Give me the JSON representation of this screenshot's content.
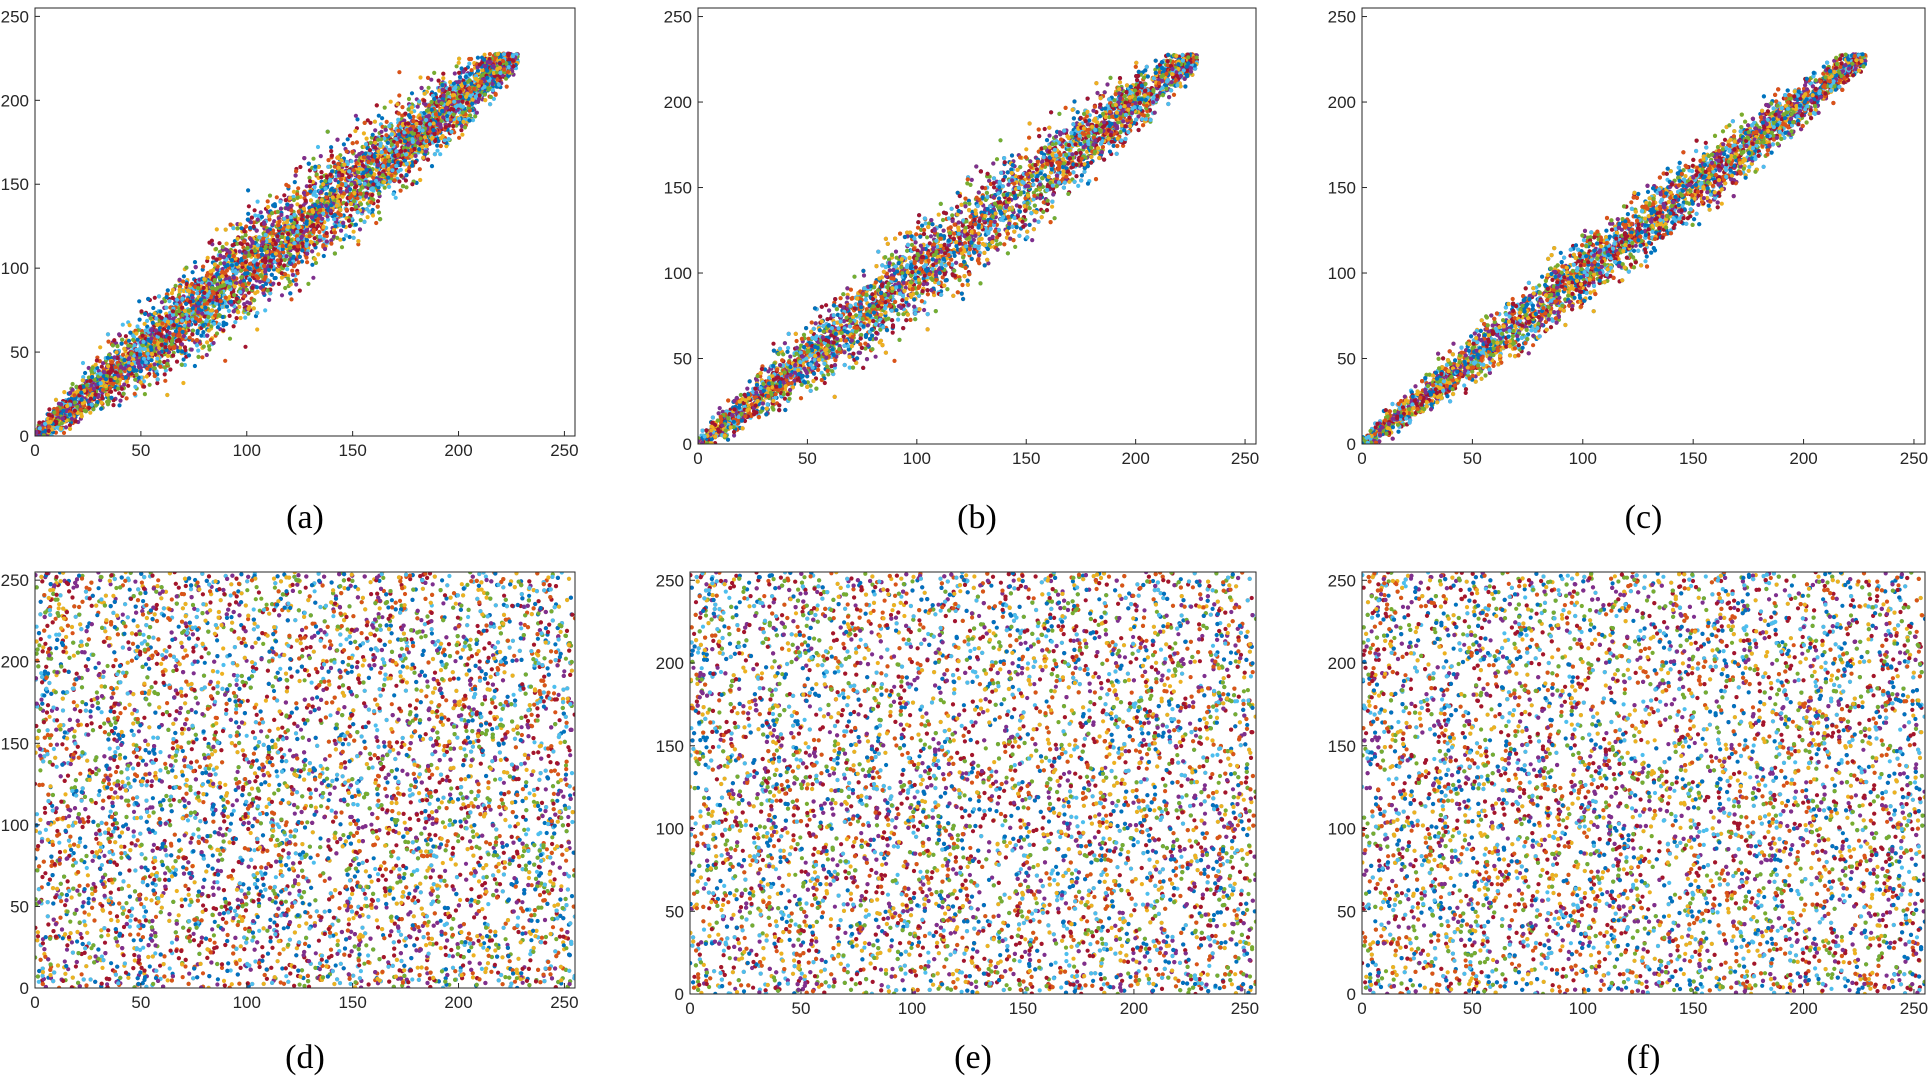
{
  "colors": {
    "series": [
      "#0072BD",
      "#D95319",
      "#EDB120",
      "#7E2F8E",
      "#77AC30",
      "#4DBEEE",
      "#A2142F"
    ],
    "axis": "#262626",
    "background": "#ffffff"
  },
  "chart_data": [
    {
      "panel": "(a)",
      "type": "scatter",
      "distribution": "correlated",
      "xlim": [
        0,
        255
      ],
      "ylim": [
        0,
        255
      ],
      "xticks": [
        0,
        50,
        100,
        150,
        200,
        250
      ],
      "yticks": [
        0,
        50,
        100,
        150,
        200,
        250
      ],
      "grid": false,
      "series_colors": [
        "#0072BD",
        "#D95319",
        "#EDB120",
        "#7E2F8E",
        "#77AC30",
        "#4DBEEE",
        "#A2142F"
      ],
      "x_range": [
        0,
        228
      ],
      "y_range": [
        0,
        228
      ],
      "spread": 0.2
    },
    {
      "panel": "(b)",
      "type": "scatter",
      "distribution": "correlated",
      "xlim": [
        0,
        255
      ],
      "ylim": [
        0,
        255
      ],
      "xticks": [
        0,
        50,
        100,
        150,
        200,
        250
      ],
      "yticks": [
        0,
        50,
        100,
        150,
        200,
        250
      ],
      "grid": false,
      "series_colors": [
        "#0072BD",
        "#D95319",
        "#EDB120",
        "#7E2F8E",
        "#77AC30",
        "#4DBEEE",
        "#A2142F"
      ],
      "x_range": [
        0,
        228
      ],
      "y_range": [
        0,
        228
      ],
      "spread": 0.18
    },
    {
      "panel": "(c)",
      "type": "scatter",
      "distribution": "correlated",
      "xlim": [
        0,
        255
      ],
      "ylim": [
        0,
        255
      ],
      "xticks": [
        0,
        50,
        100,
        150,
        200,
        250
      ],
      "yticks": [
        0,
        50,
        100,
        150,
        200,
        250
      ],
      "grid": false,
      "series_colors": [
        "#0072BD",
        "#D95319",
        "#EDB120",
        "#7E2F8E",
        "#77AC30",
        "#4DBEEE",
        "#A2142F"
      ],
      "x_range": [
        0,
        228
      ],
      "y_range": [
        0,
        228
      ],
      "spread": 0.12
    },
    {
      "panel": "(d)",
      "type": "scatter",
      "distribution": "uniform",
      "xlim": [
        0,
        255
      ],
      "ylim": [
        0,
        255
      ],
      "xticks": [
        0,
        50,
        100,
        150,
        200,
        250
      ],
      "yticks": [
        0,
        50,
        100,
        150,
        200,
        250
      ],
      "grid": false,
      "series_colors": [
        "#0072BD",
        "#D95319",
        "#EDB120",
        "#7E2F8E",
        "#77AC30",
        "#4DBEEE",
        "#A2142F"
      ],
      "x_range": [
        0,
        255
      ],
      "y_range": [
        0,
        255
      ]
    },
    {
      "panel": "(e)",
      "type": "scatter",
      "distribution": "uniform",
      "xlim": [
        0,
        255
      ],
      "ylim": [
        0,
        255
      ],
      "xticks": [
        0,
        50,
        100,
        150,
        200,
        250
      ],
      "yticks": [
        0,
        50,
        100,
        150,
        200,
        250
      ],
      "grid": false,
      "series_colors": [
        "#0072BD",
        "#D95319",
        "#EDB120",
        "#7E2F8E",
        "#77AC30",
        "#4DBEEE",
        "#A2142F"
      ],
      "x_range": [
        0,
        255
      ],
      "y_range": [
        0,
        255
      ]
    },
    {
      "panel": "(f)",
      "type": "scatter",
      "distribution": "uniform",
      "xlim": [
        0,
        255
      ],
      "ylim": [
        0,
        255
      ],
      "xticks": [
        0,
        50,
        100,
        150,
        200,
        250
      ],
      "yticks": [
        0,
        50,
        100,
        150,
        200,
        250
      ],
      "grid": false,
      "series_colors": [
        "#0072BD",
        "#D95319",
        "#EDB120",
        "#7E2F8E",
        "#77AC30",
        "#4DBEEE",
        "#A2142F"
      ],
      "x_range": [
        0,
        255
      ],
      "y_range": [
        0,
        255
      ]
    }
  ]
}
